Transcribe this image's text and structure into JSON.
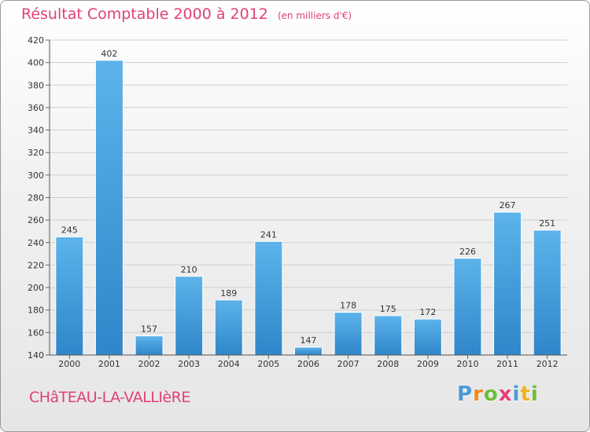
{
  "title": {
    "main": "Résultat Comptable 2000 à 2012",
    "unit": "(en milliers d'€)"
  },
  "commune": "CHâTEAU-LA-VALLIèRE",
  "brand": {
    "letters": [
      "P",
      "r",
      "o",
      "x",
      "i",
      "t",
      "i"
    ],
    "colors": [
      "#4a9ad8",
      "#f08a1c",
      "#6abf3a",
      "#e0407a",
      "#4a9ad8",
      "#f0b21c",
      "#6abf3a"
    ]
  },
  "colors": {
    "bar_top": "#5db3ea",
    "bar_bottom": "#2f86c9",
    "title": "#e0407a",
    "grid": "#cfcfcf"
  },
  "chart_data": {
    "type": "bar",
    "title": "Résultat Comptable 2000 à 2012",
    "xlabel": "",
    "ylabel": "",
    "categories": [
      "2000",
      "2001",
      "2002",
      "2003",
      "2004",
      "2005",
      "2006",
      "2007",
      "2008",
      "2009",
      "2010",
      "2011",
      "2012"
    ],
    "values": [
      245,
      402,
      157,
      210,
      189,
      241,
      147,
      178,
      175,
      172,
      226,
      267,
      251
    ],
    "ylim": [
      140,
      420
    ],
    "yticks": [
      140,
      160,
      180,
      200,
      220,
      240,
      260,
      280,
      300,
      320,
      340,
      360,
      380,
      400,
      420
    ],
    "grid": true
  }
}
